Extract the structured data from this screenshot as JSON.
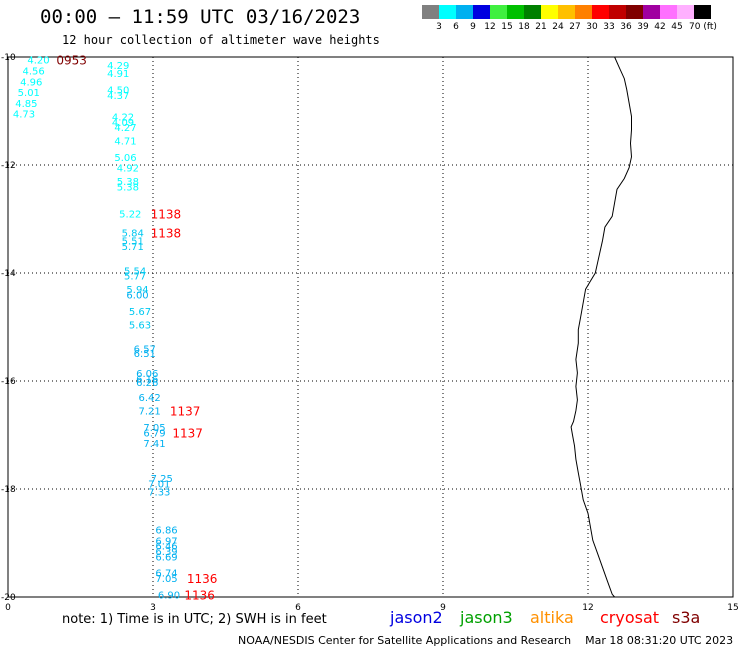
{
  "header": {
    "title": "00:00 — 11:59 UTC 03/16/2023",
    "subtitle": "12 hour collection of altimeter wave heights"
  },
  "legend": {
    "colors": [
      "#808080",
      "#00ffff",
      "#00b0f0",
      "#0000e0",
      "#40f040",
      "#00c000",
      "#008000",
      "#ffff00",
      "#ffc000",
      "#ff8000",
      "#ff0000",
      "#c00000",
      "#800000",
      "#a000a0",
      "#ff70ff",
      "#ffb0ff",
      "#000000"
    ],
    "labels": [
      "3",
      "6",
      "9",
      "12",
      "15",
      "18",
      "21",
      "24",
      "27",
      "30",
      "33",
      "36",
      "39",
      "42",
      "45",
      "70 (ft)"
    ]
  },
  "axes": {
    "x_ticks": [
      "0",
      "3",
      "6",
      "9",
      "12",
      "15"
    ],
    "y_ticks": [
      "-10",
      "-12",
      "-14",
      "-16",
      "-18",
      "-20"
    ],
    "xlim": [
      0,
      15
    ],
    "ylim": [
      -20,
      -10
    ]
  },
  "times": [
    {
      "text": "0953",
      "lon": 1.0,
      "lat": -10.05,
      "color": "#800000"
    },
    {
      "text": "1138",
      "lon": 2.95,
      "lat": -12.9,
      "color": "#ff0000"
    },
    {
      "text": "1138",
      "lon": 2.95,
      "lat": -13.25,
      "color": "#ff0000"
    },
    {
      "text": "1137",
      "lon": 3.35,
      "lat": -16.55,
      "color": "#ff0000"
    },
    {
      "text": "1137",
      "lon": 3.4,
      "lat": -16.95,
      "color": "#ff0000"
    },
    {
      "text": "1136",
      "lon": 3.7,
      "lat": -19.65,
      "color": "#ff0000"
    },
    {
      "text": "1136",
      "lon": 3.65,
      "lat": -19.95,
      "color": "#ff0000"
    }
  ],
  "heights": [
    {
      "text": "4.20",
      "lon": 0.4,
      "lat": -10.05,
      "color": "#00ffff"
    },
    {
      "text": "4.56",
      "lon": 0.3,
      "lat": -10.25,
      "color": "#00ffff"
    },
    {
      "text": "4.96",
      "lon": 0.25,
      "lat": -10.45,
      "color": "#00ffff"
    },
    {
      "text": "5.01",
      "lon": 0.2,
      "lat": -10.65,
      "color": "#00ffff"
    },
    {
      "text": "4.85",
      "lon": 0.15,
      "lat": -10.85,
      "color": "#00ffff"
    },
    {
      "text": "4.73",
      "lon": 0.1,
      "lat": -11.05,
      "color": "#00ffff"
    },
    {
      "text": "4.29",
      "lon": 2.05,
      "lat": -10.15,
      "color": "#00ffff"
    },
    {
      "text": "4.91",
      "lon": 2.05,
      "lat": -10.3,
      "color": "#00ffff"
    },
    {
      "text": "4.50",
      "lon": 2.05,
      "lat": -10.6,
      "color": "#00ffff"
    },
    {
      "text": "4.37",
      "lon": 2.05,
      "lat": -10.7,
      "color": "#00ffff"
    },
    {
      "text": "4.22",
      "lon": 2.15,
      "lat": -11.1,
      "color": "#00ffff"
    },
    {
      "text": "4.09",
      "lon": 2.15,
      "lat": -11.2,
      "color": "#00ffff"
    },
    {
      "text": "4.27",
      "lon": 2.2,
      "lat": -11.3,
      "color": "#00ffff"
    },
    {
      "text": "4.71",
      "lon": 2.2,
      "lat": -11.55,
      "color": "#00ffff"
    },
    {
      "text": "5.06",
      "lon": 2.2,
      "lat": -11.85,
      "color": "#00ffff"
    },
    {
      "text": "4.92",
      "lon": 2.25,
      "lat": -12.05,
      "color": "#00ffff"
    },
    {
      "text": "5.38",
      "lon": 2.25,
      "lat": -12.3,
      "color": "#00ffff"
    },
    {
      "text": "5.38",
      "lon": 2.25,
      "lat": -12.4,
      "color": "#00ffff"
    },
    {
      "text": "5.22",
      "lon": 2.3,
      "lat": -12.9,
      "color": "#00ffff"
    },
    {
      "text": "5.84",
      "lon": 2.35,
      "lat": -13.25,
      "color": "#00c8f0"
    },
    {
      "text": "5.51",
      "lon": 2.35,
      "lat": -13.4,
      "color": "#00c8f0"
    },
    {
      "text": "5.71",
      "lon": 2.35,
      "lat": -13.5,
      "color": "#00c8f0"
    },
    {
      "text": "5.54",
      "lon": 2.4,
      "lat": -13.95,
      "color": "#00c8f0"
    },
    {
      "text": "5.77",
      "lon": 2.4,
      "lat": -14.05,
      "color": "#00c8f0"
    },
    {
      "text": "5.94",
      "lon": 2.45,
      "lat": -14.3,
      "color": "#00c8f0"
    },
    {
      "text": "6.00",
      "lon": 2.45,
      "lat": -14.4,
      "color": "#00b0f0"
    },
    {
      "text": "5.67",
      "lon": 2.5,
      "lat": -14.7,
      "color": "#00c8f0"
    },
    {
      "text": "5.63",
      "lon": 2.5,
      "lat": -14.95,
      "color": "#00c8f0"
    },
    {
      "text": "6.57",
      "lon": 2.6,
      "lat": -15.4,
      "color": "#00b0f0"
    },
    {
      "text": "6.51",
      "lon": 2.6,
      "lat": -15.48,
      "color": "#00b0f0"
    },
    {
      "text": "6.06",
      "lon": 2.65,
      "lat": -15.85,
      "color": "#00b0f0"
    },
    {
      "text": "6.16",
      "lon": 2.65,
      "lat": -15.95,
      "color": "#00b0f0"
    },
    {
      "text": "6.26",
      "lon": 2.65,
      "lat": -16.02,
      "color": "#00b0f0"
    },
    {
      "text": "6.42",
      "lon": 2.7,
      "lat": -16.3,
      "color": "#00b0f0"
    },
    {
      "text": "7.21",
      "lon": 2.7,
      "lat": -16.55,
      "color": "#00b0f0"
    },
    {
      "text": "7.05",
      "lon": 2.8,
      "lat": -16.85,
      "color": "#00b0f0"
    },
    {
      "text": "6.79",
      "lon": 2.8,
      "lat": -16.95,
      "color": "#00b0f0"
    },
    {
      "text": "7.41",
      "lon": 2.8,
      "lat": -17.15,
      "color": "#00b0f0"
    },
    {
      "text": "7.25",
      "lon": 2.95,
      "lat": -17.8,
      "color": "#00b0f0"
    },
    {
      "text": "7.01",
      "lon": 2.9,
      "lat": -17.9,
      "color": "#00b0f0"
    },
    {
      "text": "7.33",
      "lon": 2.9,
      "lat": -18.05,
      "color": "#00b0f0"
    },
    {
      "text": "6.86",
      "lon": 3.05,
      "lat": -18.75,
      "color": "#00b0f0"
    },
    {
      "text": "6.97",
      "lon": 3.05,
      "lat": -18.95,
      "color": "#00b0f0"
    },
    {
      "text": "6.46",
      "lon": 3.05,
      "lat": -19.05,
      "color": "#00b0f0"
    },
    {
      "text": "6.39",
      "lon": 3.05,
      "lat": -19.15,
      "color": "#00b0f0"
    },
    {
      "text": "6.69",
      "lon": 3.05,
      "lat": -19.25,
      "color": "#00b0f0"
    },
    {
      "text": "6.74",
      "lon": 3.05,
      "lat": -19.55,
      "color": "#00b0f0"
    },
    {
      "text": "7.05",
      "lon": 3.05,
      "lat": -19.65,
      "color": "#00b0f0"
    },
    {
      "text": "6.90",
      "lon": 3.1,
      "lat": -19.95,
      "color": "#00b0f0"
    }
  ],
  "coastline": [
    [
      12.55,
      -10.0
    ],
    [
      12.65,
      -10.2
    ],
    [
      12.75,
      -10.4
    ],
    [
      12.8,
      -10.6
    ],
    [
      12.85,
      -10.85
    ],
    [
      12.9,
      -11.1
    ],
    [
      12.9,
      -11.35
    ],
    [
      12.88,
      -11.6
    ],
    [
      12.9,
      -11.85
    ],
    [
      12.85,
      -12.05
    ],
    [
      12.75,
      -12.25
    ],
    [
      12.6,
      -12.45
    ],
    [
      12.55,
      -12.7
    ],
    [
      12.5,
      -12.95
    ],
    [
      12.35,
      -13.15
    ],
    [
      12.3,
      -13.4
    ],
    [
      12.25,
      -13.6
    ],
    [
      12.2,
      -13.8
    ],
    [
      12.15,
      -14.0
    ],
    [
      12.05,
      -14.15
    ],
    [
      11.95,
      -14.3
    ],
    [
      11.9,
      -14.55
    ],
    [
      11.85,
      -14.8
    ],
    [
      11.8,
      -15.05
    ],
    [
      11.8,
      -15.3
    ],
    [
      11.75,
      -15.6
    ],
    [
      11.78,
      -15.85
    ],
    [
      11.75,
      -16.1
    ],
    [
      11.78,
      -16.35
    ],
    [
      11.75,
      -16.55
    ],
    [
      11.7,
      -16.75
    ],
    [
      11.65,
      -16.85
    ],
    [
      11.68,
      -17.0
    ],
    [
      11.72,
      -17.2
    ],
    [
      11.75,
      -17.45
    ],
    [
      11.8,
      -17.7
    ],
    [
      11.85,
      -17.95
    ],
    [
      11.9,
      -18.2
    ],
    [
      12.0,
      -18.45
    ],
    [
      12.05,
      -18.7
    ],
    [
      12.1,
      -18.95
    ],
    [
      12.2,
      -19.2
    ],
    [
      12.3,
      -19.45
    ],
    [
      12.4,
      -19.7
    ],
    [
      12.5,
      -19.95
    ],
    [
      12.55,
      -20.0
    ]
  ],
  "footer": {
    "note": "note:  1) Time is in UTC;  2) SWH is in feet",
    "satellites": [
      {
        "name": "jason2",
        "color": "#0000e0"
      },
      {
        "name": "jason3",
        "color": "#00a000"
      },
      {
        "name": "altika",
        "color": "#ff9000"
      },
      {
        "name": "cryosat",
        "color": "#ff0000"
      },
      {
        "name": "s3a",
        "color": "#800000"
      }
    ],
    "credit": "NOAA/NESDIS Center for Satellite Applications and Research    Mar 18 08:31:20 UTC 2023"
  }
}
